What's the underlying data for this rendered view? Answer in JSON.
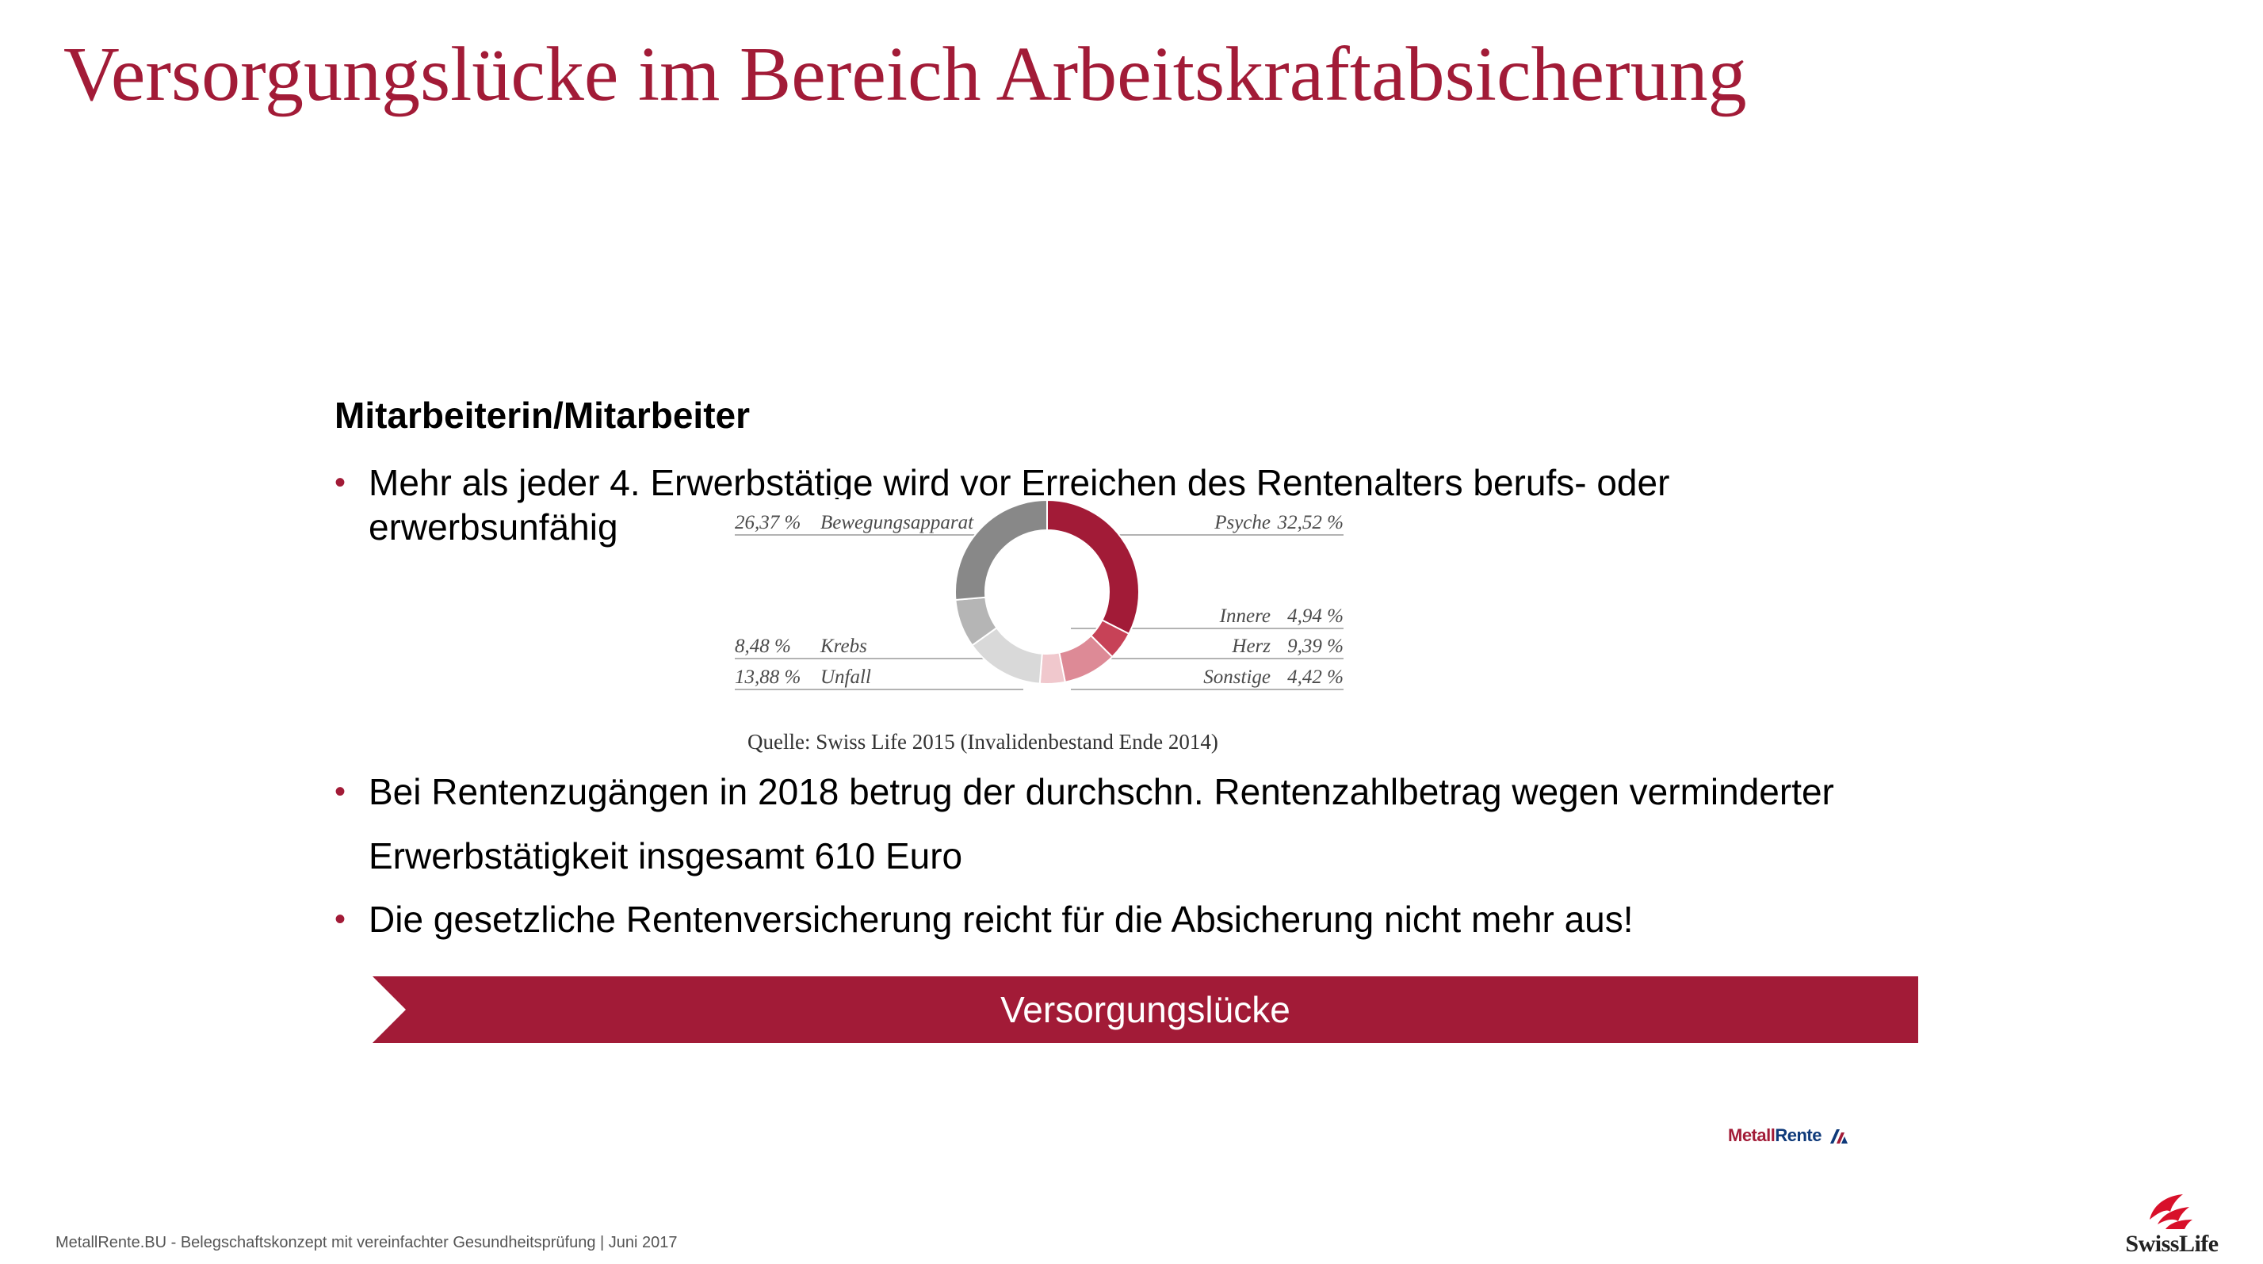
{
  "slide": {
    "title": "Versorgungslücke im Bereich Arbeitskraftabsicherung",
    "subtitle": "Mitarbeiterin/Mitarbeiter",
    "bullet_symbol": "•",
    "bullets": [
      {
        "line1": "Mehr als jeder 4. Erwerbstätige wird vor Erreichen des Rentenalters berufs- oder",
        "line2": "erwerbsunfähig"
      },
      {
        "line1": "Bei Rentenzugängen in 2018 betrug der durchschn. Rentenzahlbetrag wegen verminderter",
        "line2": "Erwerbstätigkeit insgesamt 610 Euro"
      },
      {
        "line1": "Die gesetzliche Rentenversicherung reicht für die Absicherung nicht mehr aus!"
      }
    ],
    "banner": "Versorgungslücke",
    "footer": "MetallRente.BU - Belegschaftskonzept mit vereinfachter Gesundheitsprüfung | Juni 2017",
    "logos": {
      "metallrente_part1": "Metall",
      "metallrente_part2": "Rente",
      "swisslife": "SwissLife"
    },
    "colors": {
      "accent": "#a21b37",
      "navy": "#0f3a7a"
    }
  },
  "chart_data": {
    "type": "pie",
    "donut": true,
    "slices": [
      {
        "label": "Psyche",
        "value": 32.52,
        "display": "32,52 %",
        "color": "#a21b37"
      },
      {
        "label": "Innere",
        "value": 4.94,
        "display": "4,94 %",
        "color": "#c74257"
      },
      {
        "label": "Herz",
        "value": 9.39,
        "display": "9,39 %",
        "color": "#dd8a96"
      },
      {
        "label": "Sonstige",
        "value": 4.42,
        "display": "4,42 %",
        "color": "#f0c8cd"
      },
      {
        "label": "Unfall",
        "value": 13.88,
        "display": "13,88 %",
        "color": "#d9d9d9"
      },
      {
        "label": "Krebs",
        "value": 8.48,
        "display": "8,48 %",
        "color": "#b5b5b5"
      },
      {
        "label": "Bewegungsapparat",
        "value": 26.37,
        "display": "26,37 %",
        "color": "#888888"
      }
    ],
    "source": "Quelle: Swiss Life 2015 (Invalidenbestand Ende 2014)"
  }
}
